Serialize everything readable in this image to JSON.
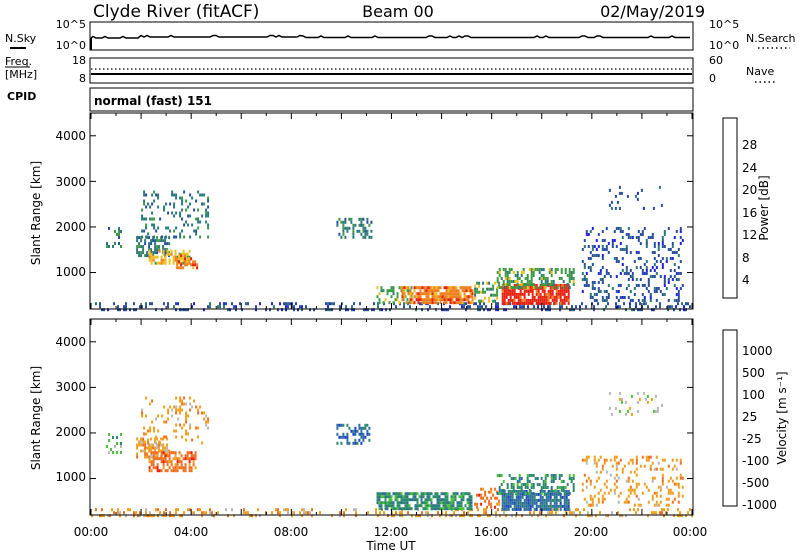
{
  "header": {
    "station": "Clyde River (fitACF)",
    "beam": "Beam 00",
    "date": "02/May/2019"
  },
  "noise_panel": {
    "left_label": "N.Sky",
    "right_label": "N.Search",
    "ticks_left": [
      "10^5",
      "10^0"
    ],
    "ticks_right": [
      "10^5",
      "10^0"
    ]
  },
  "freq_panel": {
    "left_label_1": "Freq.",
    "left_label_2": "[MHz]",
    "right_label": "Nave",
    "ticks_left": [
      "18",
      "8"
    ],
    "ticks_right": [
      "60",
      "0"
    ]
  },
  "cpid_panel": {
    "label": "CPID",
    "value": "normal (fast) 151"
  },
  "power_panel": {
    "ylabel": "Slant Range [km]",
    "yticks": [
      "4000",
      "3000",
      "2000",
      "1000"
    ],
    "colorbar_label": "Power [dB]",
    "colorbar_ticks": [
      "28",
      "24",
      "20",
      "16",
      "12",
      "8",
      "4"
    ]
  },
  "velocity_panel": {
    "ylabel": "Slant Range [km]",
    "yticks": [
      "4000",
      "3000",
      "2000",
      "1000"
    ],
    "colorbar_label": "Velocity [m s⁻¹]",
    "colorbar_ticks": [
      "1000",
      "500",
      "100",
      "25",
      "-25",
      "-100",
      "-500",
      "-1000"
    ]
  },
  "time_axis": {
    "xlabel": "Time UT",
    "ticks": [
      "00:00",
      "04:00",
      "08:00",
      "12:00",
      "16:00",
      "20:00",
      "00:00"
    ]
  },
  "colors": {
    "power_scale": [
      "#1f23e6",
      "#2a4ea0",
      "#2d7a78",
      "#3d9b45",
      "#f0c020",
      "#f08020",
      "#e82010"
    ],
    "velocity_scale": [
      "#2040d0",
      "#2e6e9e",
      "#2d8a6a",
      "#4cc23a",
      "#b8b8b8",
      "#f0a020",
      "#f07020",
      "#e82010"
    ]
  },
  "chart_data": [
    {
      "type": "heatmap",
      "name": "power",
      "title": "",
      "xlabel": "",
      "ylabel": "Slant Range [km]",
      "units": "dB",
      "xlim": [
        0,
        24
      ],
      "ylim": [
        200,
        4500
      ],
      "clim": [
        0,
        32
      ],
      "regions": [
        {
          "t0": 0.0,
          "t1": 24.0,
          "r0": 200,
          "r1": 350,
          "value": 9,
          "density": 0.3
        },
        {
          "t0": 1.8,
          "t1": 3.1,
          "r0": 1400,
          "r1": 1800,
          "value": 12,
          "density": 0.55
        },
        {
          "t0": 2.3,
          "t1": 3.9,
          "r0": 1200,
          "r1": 1500,
          "value": 20,
          "density": 0.65
        },
        {
          "t0": 3.4,
          "t1": 4.2,
          "r0": 1100,
          "r1": 1400,
          "value": 26,
          "density": 0.6
        },
        {
          "t0": 2.0,
          "t1": 4.7,
          "r0": 1800,
          "r1": 2800,
          "value": 10,
          "density": 0.2
        },
        {
          "t0": 0.6,
          "t1": 1.2,
          "r0": 1600,
          "r1": 2000,
          "value": 10,
          "density": 0.25
        },
        {
          "t0": 9.8,
          "t1": 11.2,
          "r0": 1800,
          "r1": 2200,
          "value": 12,
          "density": 0.45
        },
        {
          "t0": 11.4,
          "t1": 12.8,
          "r0": 350,
          "r1": 700,
          "value": 14,
          "density": 0.4
        },
        {
          "t0": 12.4,
          "t1": 15.2,
          "r0": 350,
          "r1": 700,
          "value": 26,
          "density": 0.8
        },
        {
          "t0": 15.3,
          "t1": 16.3,
          "r0": 400,
          "r1": 800,
          "value": 14,
          "density": 0.35
        },
        {
          "t0": 16.4,
          "t1": 19.1,
          "r0": 350,
          "r1": 750,
          "value": 28,
          "density": 0.85
        },
        {
          "t0": 16.2,
          "t1": 19.3,
          "r0": 700,
          "r1": 1100,
          "value": 16,
          "density": 0.45
        },
        {
          "t0": 19.6,
          "t1": 23.6,
          "r0": 400,
          "r1": 2000,
          "value": 8,
          "density": 0.22
        },
        {
          "t0": 20.6,
          "t1": 22.8,
          "r0": 2400,
          "r1": 2900,
          "value": 8,
          "density": 0.12
        }
      ]
    },
    {
      "type": "heatmap",
      "name": "velocity",
      "title": "",
      "xlabel": "Time UT",
      "ylabel": "Slant Range [km]",
      "units": "m s-1",
      "xlim": [
        0,
        24
      ],
      "ylim": [
        200,
        4500
      ],
      "clim": [
        -1000,
        1000
      ],
      "regions": [
        {
          "t0": 0.0,
          "t1": 24.0,
          "r0": 200,
          "r1": 350,
          "value": -100,
          "density": 0.25
        },
        {
          "t0": 1.8,
          "t1": 3.1,
          "r0": 1500,
          "r1": 1900,
          "value": -100,
          "density": 0.55
        },
        {
          "t0": 2.3,
          "t1": 4.2,
          "r0": 1200,
          "r1": 1600,
          "value": -200,
          "density": 0.65
        },
        {
          "t0": 2.0,
          "t1": 4.7,
          "r0": 1800,
          "r1": 2800,
          "value": -100,
          "density": 0.2
        },
        {
          "t0": 0.6,
          "t1": 1.2,
          "r0": 1600,
          "r1": 2000,
          "value": 60,
          "density": 0.25
        },
        {
          "t0": 9.8,
          "t1": 11.2,
          "r0": 1800,
          "r1": 2200,
          "value": 500,
          "density": 0.45
        },
        {
          "t0": 11.4,
          "t1": 15.2,
          "r0": 350,
          "r1": 700,
          "value": 100,
          "density": 0.75
        },
        {
          "t0": 15.3,
          "t1": 16.3,
          "r0": 400,
          "r1": 800,
          "value": -200,
          "density": 0.4
        },
        {
          "t0": 16.4,
          "t1": 19.1,
          "r0": 350,
          "r1": 750,
          "value": 300,
          "density": 0.85
        },
        {
          "t0": 16.2,
          "t1": 19.3,
          "r0": 700,
          "r1": 1100,
          "value": 100,
          "density": 0.45
        },
        {
          "t0": 19.6,
          "t1": 23.6,
          "r0": 400,
          "r1": 1500,
          "value": -100,
          "density": 0.22
        },
        {
          "t0": 20.6,
          "t1": 22.8,
          "r0": 2400,
          "r1": 2900,
          "value": 0,
          "density": 0.14
        }
      ]
    }
  ]
}
